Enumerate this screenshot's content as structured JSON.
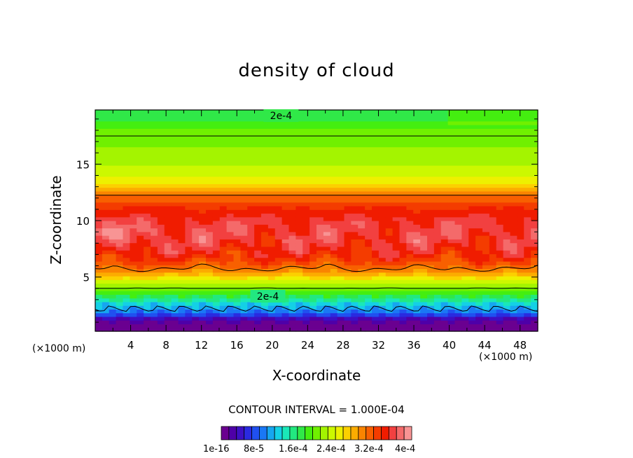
{
  "chart_data": {
    "type": "heatmap",
    "title": "density of cloud",
    "xlabel": "X-coordinate",
    "ylabel": "Z-coordinate",
    "x_unit_label": "(×1000 m)",
    "z_unit_label": "(×1000 m)",
    "xlim": [
      0,
      50
    ],
    "ylim": [
      0.2,
      19.8
    ],
    "x_ticks": [
      "4",
      "8",
      "12",
      "16",
      "20",
      "24",
      "28",
      "32",
      "36",
      "40",
      "44",
      "48"
    ],
    "y_ticks": [
      "5",
      "10",
      "15"
    ],
    "contour_labels": [
      {
        "text": "2e-4",
        "x": 21,
        "z": 19.3
      },
      {
        "text": "2e-4",
        "x": 19.5,
        "z": 3.3
      }
    ],
    "contour_interval": "CONTOUR INTERVAL = 1.000E-04",
    "colorbar_labels": [
      "1e-16",
      "8e-5",
      "1.6e-4",
      "2.4e-4",
      "3.2e-4",
      "4e-4"
    ],
    "colorbar_colors": [
      "#6a0090",
      "#4e00a8",
      "#3c10c4",
      "#2a2ae0",
      "#2050f0",
      "#1a78f5",
      "#16a6f0",
      "#14d0e6",
      "#1ae8b8",
      "#22e880",
      "#30e848",
      "#44ee10",
      "#70f000",
      "#a4f400",
      "#ccf800",
      "#eef000",
      "#fcd000",
      "#fcac00",
      "#fa8400",
      "#f86000",
      "#f43c00",
      "#f01c00",
      "#f24040",
      "#f46a6a",
      "#f89494"
    ],
    "field_profile": {
      "z_levels": [
        0.2,
        0.8,
        1.2,
        1.5,
        1.8,
        2.2,
        2.6,
        3.0,
        3.4,
        3.8,
        4.2,
        4.6,
        5.0,
        5.5,
        6.0,
        6.5,
        7.0,
        8.0,
        9.0,
        10.0,
        11.0,
        12.0,
        12.5,
        13.0,
        13.6,
        14.2,
        15.0,
        16.0,
        17.0,
        18.0,
        19.0,
        19.8
      ],
      "density": [
        0.0,
        0.0,
        2e-05,
        5e-05,
        8e-05,
        0.0001,
        0.00012,
        0.00015,
        0.00017,
        0.00019,
        0.00021,
        0.00023,
        0.00026,
        0.00029,
        0.00031,
        0.00033,
        0.00034,
        0.000355,
        0.00036,
        0.000355,
        0.00034,
        0.00031,
        0.00029,
        0.00026,
        0.000245,
        0.000235,
        0.00022,
        0.00021,
        0.000205,
        0.000195,
        0.000175,
        0.00016
      ]
    },
    "contour_levels": [
      0.0001,
      0.0002,
      0.0003
    ],
    "grid": false
  }
}
